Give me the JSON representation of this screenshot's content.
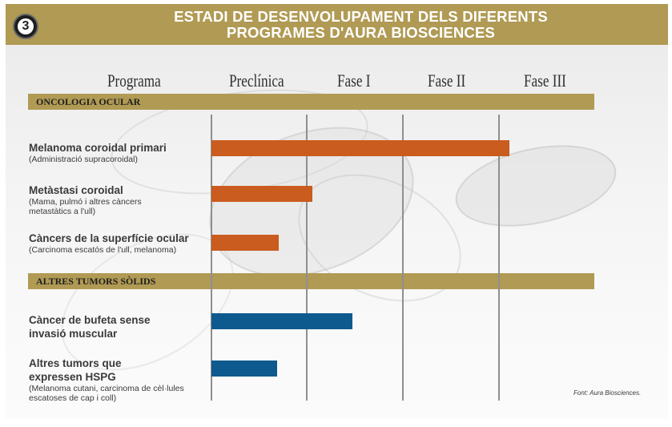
{
  "header": {
    "badge_number": "3",
    "title_line1": "ESTADI DE DESENVOLUPAMENT DELS DIFERENTS",
    "title_line2": "PROGRAMES D'AURA BIOSCIENCES"
  },
  "columns": [
    "Programa",
    "Preclínica",
    "Fase I",
    "Fase II",
    "Fase III"
  ],
  "sections": [
    {
      "label": "ONCOLOGIA OCULAR"
    },
    {
      "label": "ALTRES TUMORS SÒLIDS"
    }
  ],
  "colors": {
    "header_gold": "#b09a54",
    "oncologia_bar": "#c95c1e",
    "altres_bar": "#0e5a8e"
  },
  "chart_data": {
    "type": "bar",
    "orientation": "horizontal",
    "stages": [
      "Preclínica",
      "Fase I",
      "Fase II",
      "Fase III"
    ],
    "series": [
      {
        "name": "ONCOLOGIA OCULAR",
        "color": "#c95c1e",
        "programs": [
          {
            "name": "Melanoma coroidal primari",
            "detail": "(Administració supracoroidal)",
            "progress_stages": 3.1
          },
          {
            "name": "Metàstasi coroidal",
            "detail": "(Mama, pulmó i altres càncers\nmetastàtics a l'ull)",
            "progress_stages": 1.05
          },
          {
            "name": "Càncers de la superfície ocular",
            "detail": "(Carcinoma escatós de l'ull, melanoma)",
            "progress_stages": 0.7
          }
        ]
      },
      {
        "name": "ALTRES TUMORS SÒLIDS",
        "color": "#0e5a8e",
        "programs": [
          {
            "name": "Càncer de bufeta sense\ninvasió muscular",
            "detail": "",
            "progress_stages": 1.47
          },
          {
            "name": "Altres tumors que\nexpressen HSPG",
            "detail": "(Melanoma cutani, carcinoma de cèl·lules\nescatoses de cap i coll)",
            "progress_stages": 0.68
          }
        ]
      }
    ]
  },
  "source": "Font: Aura Biosciences."
}
